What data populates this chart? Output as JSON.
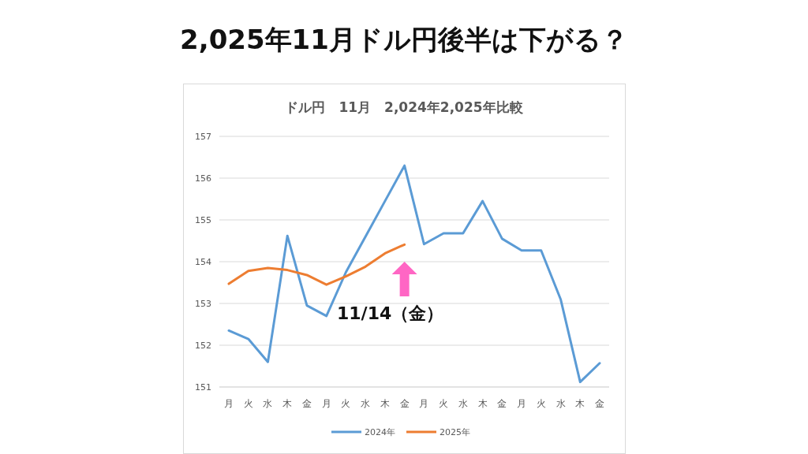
{
  "chart_data": {
    "type": "line",
    "title": "2,025年11月ドル円後半は下がる？",
    "subtitle": "ドル円　11月　2,024年2,025年比較",
    "categories": [
      "月",
      "火",
      "水",
      "木",
      "金",
      "月",
      "火",
      "水",
      "木",
      "金",
      "月",
      "火",
      "水",
      "木",
      "金",
      "月",
      "火",
      "水",
      "木",
      "金"
    ],
    "series": [
      {
        "name": "2024年",
        "color": "#5b9bd5",
        "values": [
          152.35,
          152.15,
          151.6,
          154.62,
          152.95,
          152.7,
          153.75,
          154.6,
          155.45,
          156.3,
          154.42,
          154.68,
          154.68,
          155.45,
          154.55,
          154.27,
          154.27,
          153.1,
          151.12,
          151.57
        ]
      },
      {
        "name": "2025年",
        "color": "#ed7d31",
        "values": [
          153.47,
          153.78,
          153.85,
          153.8,
          153.68,
          153.45,
          153.65,
          153.88,
          154.2,
          154.41,
          null,
          null,
          null,
          null,
          null,
          null,
          null,
          null,
          null,
          null
        ]
      }
    ],
    "annotations": [
      "11/14（金）"
    ],
    "ylim": [
      151,
      157
    ],
    "yticks": [
      151,
      152,
      153,
      154,
      155,
      156,
      157
    ],
    "grid": "y",
    "legend": "bottom",
    "marker": "none",
    "line_style": "solid"
  }
}
